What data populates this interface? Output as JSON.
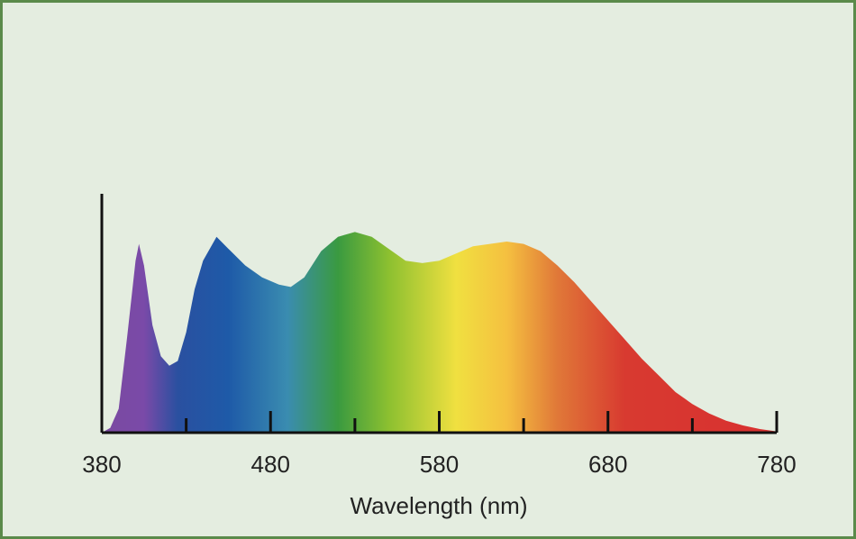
{
  "chart_data": {
    "type": "area",
    "xlabel": "Wavelength (nm)",
    "x": [
      380,
      385,
      390,
      395,
      400,
      402,
      405,
      410,
      415,
      420,
      425,
      430,
      435,
      440,
      448,
      455,
      465,
      475,
      485,
      492,
      500,
      510,
      520,
      530,
      540,
      550,
      560,
      570,
      580,
      590,
      600,
      610,
      620,
      630,
      640,
      650,
      660,
      670,
      680,
      690,
      700,
      710,
      720,
      730,
      740,
      750,
      760,
      770,
      780
    ],
    "values": [
      0,
      0.02,
      0.1,
      0.4,
      0.72,
      0.79,
      0.7,
      0.45,
      0.32,
      0.28,
      0.3,
      0.42,
      0.6,
      0.72,
      0.82,
      0.77,
      0.7,
      0.65,
      0.62,
      0.61,
      0.65,
      0.76,
      0.82,
      0.84,
      0.82,
      0.77,
      0.72,
      0.71,
      0.72,
      0.75,
      0.78,
      0.79,
      0.8,
      0.79,
      0.76,
      0.7,
      0.63,
      0.55,
      0.47,
      0.39,
      0.31,
      0.24,
      0.17,
      0.12,
      0.08,
      0.05,
      0.03,
      0.015,
      0.005
    ],
    "xlim": [
      380,
      780
    ],
    "ylim": [
      0,
      1
    ],
    "xticks": [
      380,
      480,
      580,
      680,
      780
    ],
    "xminorticks": [
      430,
      530,
      630,
      730
    ],
    "fill_stops": [
      {
        "x": 380,
        "color": "#7a4aa0"
      },
      {
        "x": 405,
        "color": "#7a4aa8"
      },
      {
        "x": 425,
        "color": "#2a50a0"
      },
      {
        "x": 455,
        "color": "#1e5aa8"
      },
      {
        "x": 490,
        "color": "#3a8cb0"
      },
      {
        "x": 520,
        "color": "#3a9a40"
      },
      {
        "x": 550,
        "color": "#8cc030"
      },
      {
        "x": 590,
        "color": "#f0e040"
      },
      {
        "x": 620,
        "color": "#f5c040"
      },
      {
        "x": 650,
        "color": "#e07838"
      },
      {
        "x": 690,
        "color": "#d83a30"
      },
      {
        "x": 780,
        "color": "#d83030"
      }
    ]
  }
}
